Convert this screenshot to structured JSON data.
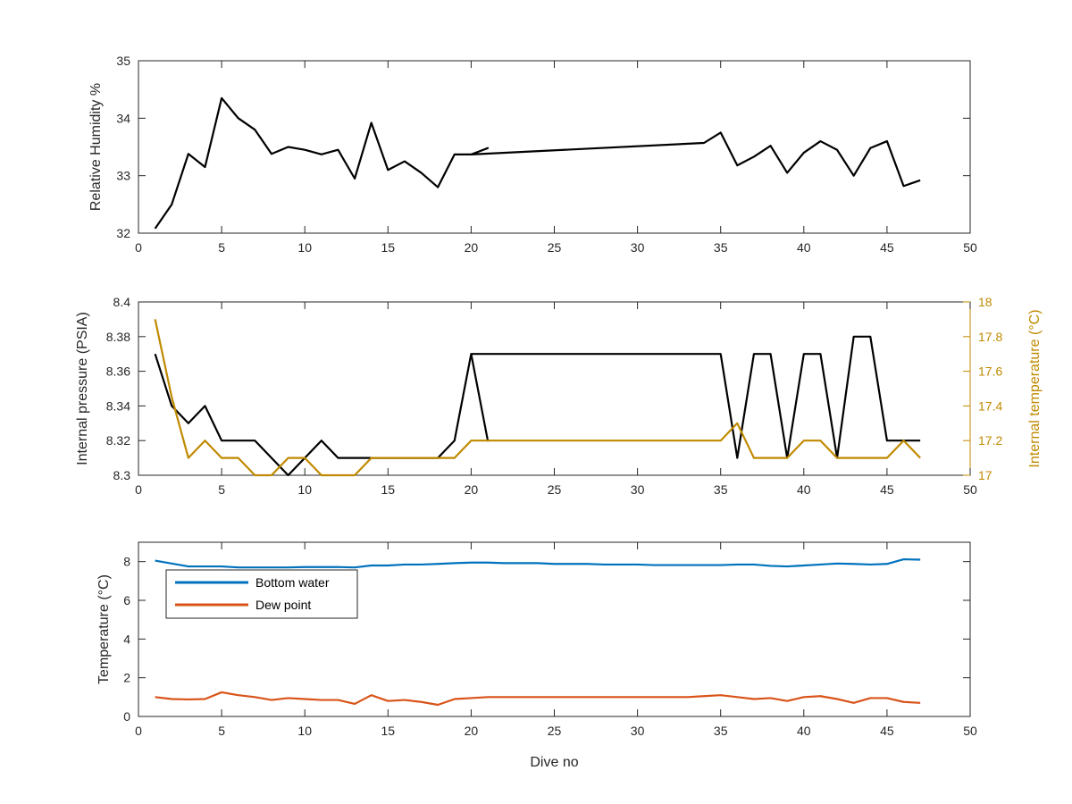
{
  "chart_data": [
    {
      "type": "line",
      "id": "humidity",
      "ylabel": "Relative Humidity %",
      "xlim": [
        0,
        50
      ],
      "ylim": [
        32,
        35
      ],
      "xticks": [
        "0",
        "5",
        "10",
        "15",
        "20",
        "25",
        "30",
        "35",
        "40",
        "45",
        "50"
      ],
      "yticks": [
        "32",
        "33",
        "34",
        "35"
      ],
      "grid": false,
      "colors": {
        "line": "#000000"
      },
      "series": [
        {
          "axis": "left",
          "points": [
            [
              1,
              32.08
            ],
            [
              2,
              32.5
            ],
            [
              3,
              33.38
            ],
            [
              4,
              33.15
            ],
            [
              5,
              34.35
            ],
            [
              6,
              34.0
            ],
            [
              7,
              33.8
            ],
            [
              8,
              33.38
            ],
            [
              9,
              33.5
            ],
            [
              10,
              33.45
            ],
            [
              11,
              33.37
            ],
            [
              12,
              33.45
            ],
            [
              13,
              32.95
            ],
            [
              14,
              33.92
            ],
            [
              15,
              33.1
            ],
            [
              16,
              33.25
            ],
            [
              17,
              33.05
            ],
            [
              18,
              32.8
            ],
            [
              19,
              33.37
            ],
            [
              20,
              33.37
            ],
            [
              21,
              33.48
            ],
            [
              20,
              33.37
            ],
            [
              34,
              33.57
            ],
            [
              35,
              33.75
            ],
            [
              36,
              33.18
            ],
            [
              37,
              33.33
            ],
            [
              38,
              33.52
            ],
            [
              39,
              33.05
            ],
            [
              40,
              33.4
            ],
            [
              41,
              33.6
            ],
            [
              42,
              33.45
            ],
            [
              43,
              33.0
            ],
            [
              44,
              33.48
            ],
            [
              45,
              33.6
            ],
            [
              46,
              32.82
            ],
            [
              47,
              32.92
            ]
          ]
        }
      ]
    },
    {
      "type": "line",
      "id": "pressure",
      "ylabel": "Internal pressure (PSIA)",
      "y2label": "Internal temperature (°C)",
      "xlim": [
        0,
        50
      ],
      "ylim": [
        8.3,
        8.4
      ],
      "y2lim": [
        17,
        18
      ],
      "xticks": [
        "0",
        "5",
        "10",
        "15",
        "20",
        "25",
        "30",
        "35",
        "40",
        "45",
        "50"
      ],
      "yticks": [
        "8.3",
        "8.32",
        "8.34",
        "8.36",
        "8.38",
        "8.4"
      ],
      "y2ticks": [
        "17",
        "17.2",
        "17.4",
        "17.6",
        "17.8",
        "18"
      ],
      "grid": false,
      "colors": {
        "pressure": "#000000",
        "temperature": "#c08a00",
        "right_axis": "#c08a00"
      },
      "series": [
        {
          "axis": "left",
          "points": [
            [
              1,
              8.37
            ],
            [
              2,
              8.34
            ],
            [
              3,
              8.33
            ],
            [
              4,
              8.34
            ],
            [
              5,
              8.32
            ],
            [
              7,
              8.32
            ],
            [
              8,
              8.31
            ],
            [
              9,
              8.3
            ],
            [
              10,
              8.31
            ],
            [
              11,
              8.32
            ],
            [
              12,
              8.31
            ],
            [
              18,
              8.31
            ],
            [
              19,
              8.32
            ],
            [
              20,
              8.37
            ],
            [
              21,
              8.32
            ],
            [
              20,
              8.37
            ],
            [
              35,
              8.37
            ],
            [
              36,
              8.31
            ],
            [
              37,
              8.37
            ],
            [
              38,
              8.37
            ],
            [
              39,
              8.31
            ],
            [
              40,
              8.37
            ],
            [
              41,
              8.37
            ],
            [
              42,
              8.31
            ],
            [
              43,
              8.38
            ],
            [
              44,
              8.38
            ],
            [
              45,
              8.32
            ],
            [
              47,
              8.32
            ]
          ]
        },
        {
          "axis": "right",
          "points": [
            [
              1,
              17.9
            ],
            [
              2,
              17.45
            ],
            [
              3,
              17.1
            ],
            [
              4,
              17.2
            ],
            [
              5,
              17.1
            ],
            [
              6,
              17.1
            ],
            [
              7,
              17.0
            ],
            [
              8,
              17.0
            ],
            [
              9,
              17.1
            ],
            [
              10,
              17.1
            ],
            [
              11,
              17.0
            ],
            [
              13,
              17.0
            ],
            [
              14,
              17.1
            ],
            [
              19,
              17.1
            ],
            [
              20,
              17.2
            ],
            [
              35,
              17.2
            ],
            [
              36,
              17.3
            ],
            [
              37,
              17.1
            ],
            [
              39,
              17.1
            ],
            [
              40,
              17.2
            ],
            [
              41,
              17.2
            ],
            [
              42,
              17.1
            ],
            [
              45,
              17.1
            ],
            [
              46,
              17.2
            ],
            [
              47,
              17.1
            ]
          ]
        }
      ]
    },
    {
      "type": "line",
      "id": "temperature",
      "ylabel": "Temperature (°C)",
      "xlabel": "Dive no",
      "xlim": [
        0,
        50
      ],
      "ylim": [
        0,
        9
      ],
      "xticks": [
        "0",
        "5",
        "10",
        "15",
        "20",
        "25",
        "30",
        "35",
        "40",
        "45",
        "50"
      ],
      "yticks": [
        "0",
        "2",
        "4",
        "6",
        "8"
      ],
      "grid": false,
      "legend": "top-left",
      "series": [
        {
          "name": "Bottom water",
          "color": "#0072bd",
          "points": [
            [
              1,
              8.05
            ],
            [
              2,
              7.9
            ],
            [
              3,
              7.75
            ],
            [
              4,
              7.75
            ],
            [
              5,
              7.75
            ],
            [
              6,
              7.7
            ],
            [
              7,
              7.7
            ],
            [
              8,
              7.7
            ],
            [
              9,
              7.7
            ],
            [
              10,
              7.72
            ],
            [
              11,
              7.72
            ],
            [
              12,
              7.72
            ],
            [
              13,
              7.7
            ],
            [
              14,
              7.8
            ],
            [
              15,
              7.8
            ],
            [
              16,
              7.85
            ],
            [
              17,
              7.85
            ],
            [
              18,
              7.88
            ],
            [
              19,
              7.92
            ],
            [
              20,
              7.95
            ],
            [
              21,
              7.95
            ],
            [
              22,
              7.92
            ],
            [
              23,
              7.92
            ],
            [
              24,
              7.92
            ],
            [
              25,
              7.88
            ],
            [
              26,
              7.88
            ],
            [
              27,
              7.88
            ],
            [
              28,
              7.85
            ],
            [
              29,
              7.85
            ],
            [
              30,
              7.85
            ],
            [
              31,
              7.82
            ],
            [
              32,
              7.82
            ],
            [
              33,
              7.82
            ],
            [
              34,
              7.82
            ],
            [
              35,
              7.82
            ],
            [
              36,
              7.85
            ],
            [
              37,
              7.85
            ],
            [
              38,
              7.78
            ],
            [
              39,
              7.75
            ],
            [
              40,
              7.8
            ],
            [
              41,
              7.85
            ],
            [
              42,
              7.9
            ],
            [
              43,
              7.88
            ],
            [
              44,
              7.85
            ],
            [
              45,
              7.88
            ],
            [
              46,
              8.12
            ],
            [
              47,
              8.1
            ]
          ]
        },
        {
          "name": "Dew point",
          "color": "#d95319",
          "points": [
            [
              1,
              1.0
            ],
            [
              2,
              0.9
            ],
            [
              3,
              0.88
            ],
            [
              4,
              0.9
            ],
            [
              5,
              1.25
            ],
            [
              6,
              1.1
            ],
            [
              7,
              1.0
            ],
            [
              8,
              0.85
            ],
            [
              9,
              0.95
            ],
            [
              10,
              0.9
            ],
            [
              11,
              0.85
            ],
            [
              12,
              0.85
            ],
            [
              13,
              0.65
            ],
            [
              14,
              1.1
            ],
            [
              15,
              0.8
            ],
            [
              16,
              0.85
            ],
            [
              17,
              0.75
            ],
            [
              18,
              0.6
            ],
            [
              19,
              0.9
            ],
            [
              20,
              0.95
            ],
            [
              21,
              1.0
            ],
            [
              22,
              1.0
            ],
            [
              23,
              1.0
            ],
            [
              24,
              1.0
            ],
            [
              25,
              1.0
            ],
            [
              26,
              1.0
            ],
            [
              27,
              1.0
            ],
            [
              28,
              1.0
            ],
            [
              29,
              1.0
            ],
            [
              30,
              1.0
            ],
            [
              31,
              1.0
            ],
            [
              32,
              1.0
            ],
            [
              33,
              1.0
            ],
            [
              34,
              1.05
            ],
            [
              35,
              1.1
            ],
            [
              36,
              1.0
            ],
            [
              37,
              0.9
            ],
            [
              38,
              0.95
            ],
            [
              39,
              0.8
            ],
            [
              40,
              1.0
            ],
            [
              41,
              1.05
            ],
            [
              42,
              0.9
            ],
            [
              43,
              0.7
            ],
            [
              44,
              0.95
            ],
            [
              45,
              0.95
            ],
            [
              46,
              0.75
            ],
            [
              47,
              0.7
            ]
          ]
        }
      ]
    }
  ]
}
